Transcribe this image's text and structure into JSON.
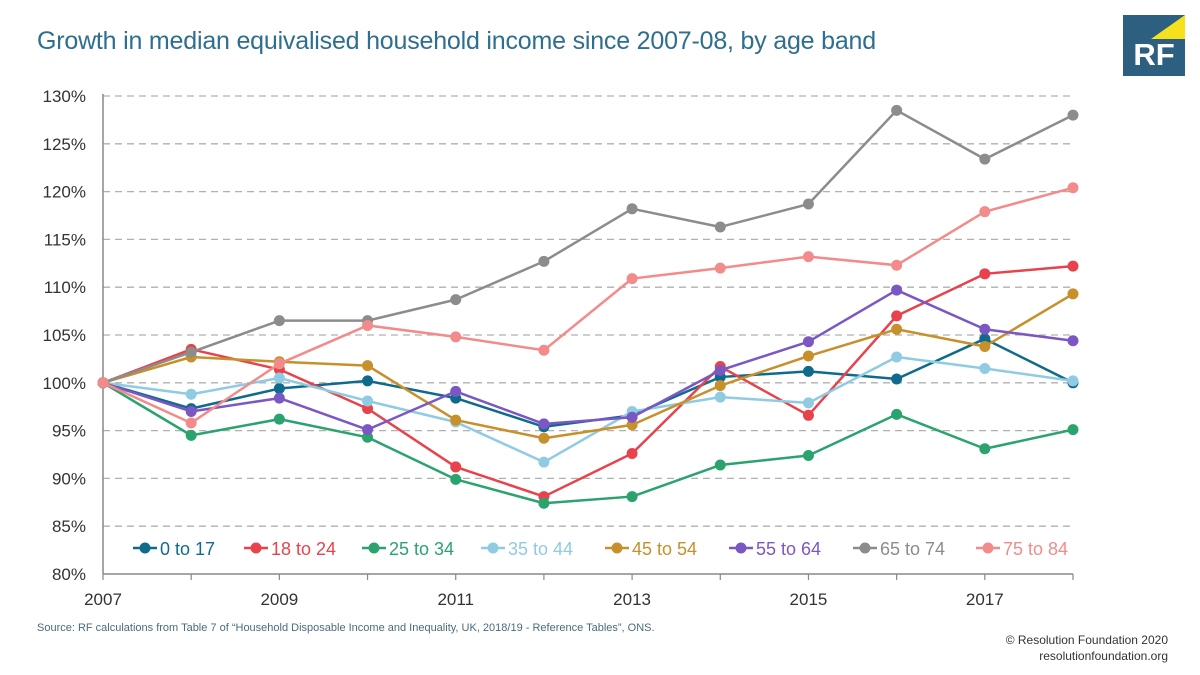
{
  "header": {
    "title": "Growth in median equivalised household income since 2007-08, by age band",
    "logo_text": "RF"
  },
  "footer": {
    "source": "Source: RF calculations from Table 7 of “Household Disposable Income and Inequality, UK, 2018/19 - Reference Tables”, ONS.",
    "copyright": "© Resolution Foundation 2020",
    "website": "resolutionfoundation.org"
  },
  "colors": {
    "title": "#2e6e8e",
    "logo_bg": "#2d5f80",
    "logo_accent": "#f5e21c",
    "grid": "#b0b0b0",
    "axis": "#888888"
  },
  "chart_data": {
    "type": "line",
    "title": "Growth in median equivalised household income since 2007-08, by age band",
    "xlabel": "",
    "ylabel": "",
    "x": [
      2007,
      2008,
      2009,
      2010,
      2011,
      2012,
      2013,
      2014,
      2015,
      2016,
      2017,
      2018
    ],
    "x_ticks": [
      2007,
      2009,
      2011,
      2013,
      2015,
      2017
    ],
    "x_tick_labels": [
      "2007",
      "2009",
      "2011",
      "2013",
      "2015",
      "2017"
    ],
    "xlim": [
      2007,
      2018
    ],
    "ylim": [
      80,
      130
    ],
    "y_ticks": [
      80,
      85,
      90,
      95,
      100,
      105,
      110,
      115,
      120,
      125,
      130
    ],
    "y_tick_labels": [
      "80%",
      "85%",
      "90%",
      "95%",
      "100%",
      "105%",
      "110%",
      "115%",
      "120%",
      "125%",
      "130%"
    ],
    "grid": "horizontal dashed",
    "legend_position": "bottom, inside plot",
    "series": [
      {
        "name": "0 to 17",
        "color": "#0f6b8e",
        "values": [
          100,
          97.3,
          99.4,
          100.2,
          98.4,
          95.4,
          96.6,
          100.6,
          101.2,
          100.4,
          104.6,
          100.0
        ]
      },
      {
        "name": "18 to 24",
        "color": "#e8434c",
        "values": [
          100,
          103.5,
          101.4,
          97.3,
          91.2,
          88.1,
          92.6,
          101.7,
          96.6,
          107.0,
          111.4,
          112.2
        ]
      },
      {
        "name": "25 to 34",
        "color": "#2aa36f",
        "values": [
          100,
          94.5,
          96.2,
          94.3,
          89.9,
          87.4,
          88.1,
          91.4,
          92.4,
          96.7,
          93.1,
          95.1
        ]
      },
      {
        "name": "35 to 44",
        "color": "#8fcbe3",
        "values": [
          100,
          98.8,
          100.5,
          98.1,
          95.9,
          91.7,
          97.0,
          98.5,
          97.9,
          102.7,
          101.5,
          100.2
        ]
      },
      {
        "name": "45 to 54",
        "color": "#c8902a",
        "values": [
          100,
          102.7,
          102.2,
          101.8,
          96.1,
          94.2,
          95.6,
          99.7,
          102.8,
          105.6,
          103.8,
          109.3
        ]
      },
      {
        "name": "55 to 64",
        "color": "#7b57c4",
        "values": [
          100,
          97.0,
          98.4,
          95.1,
          99.1,
          95.7,
          96.4,
          101.3,
          104.3,
          109.7,
          105.6,
          104.4
        ]
      },
      {
        "name": "65 to 74",
        "color": "#8c8c8c",
        "values": [
          100,
          103.2,
          106.5,
          106.5,
          108.7,
          112.7,
          118.2,
          116.3,
          118.7,
          128.5,
          123.4,
          128.0
        ]
      },
      {
        "name": "75 to 84",
        "color": "#f28b8a",
        "values": [
          100,
          95.8,
          102.0,
          106.0,
          104.8,
          103.4,
          110.9,
          112.0,
          113.2,
          112.3,
          117.9,
          120.4
        ]
      }
    ]
  }
}
